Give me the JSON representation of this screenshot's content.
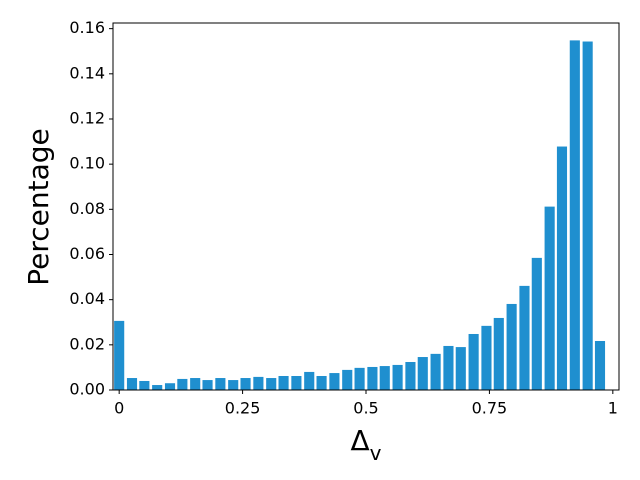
{
  "chart_data": {
    "type": "bar",
    "color": "#1f8fcf",
    "xlabel": {
      "base": "Δ",
      "sub": "v"
    },
    "ylabel": "Percentage",
    "x": [
      0,
      0.026,
      0.051,
      0.077,
      0.103,
      0.128,
      0.154,
      0.179,
      0.205,
      0.231,
      0.256,
      0.282,
      0.308,
      0.333,
      0.359,
      0.385,
      0.41,
      0.436,
      0.462,
      0.487,
      0.513,
      0.538,
      0.564,
      0.59,
      0.615,
      0.641,
      0.667,
      0.692,
      0.718,
      0.744,
      0.769,
      0.795,
      0.821,
      0.846,
      0.872,
      0.897,
      0.923,
      0.949,
      0.974
    ],
    "values": [
      0.0306,
      0.0053,
      0.004,
      0.0022,
      0.003,
      0.0049,
      0.0053,
      0.0044,
      0.0053,
      0.0044,
      0.0053,
      0.0058,
      0.0053,
      0.0062,
      0.0062,
      0.008,
      0.0062,
      0.0075,
      0.0089,
      0.0098,
      0.0102,
      0.0106,
      0.0111,
      0.0124,
      0.0146,
      0.016,
      0.0195,
      0.019,
      0.0248,
      0.0284,
      0.0319,
      0.0381,
      0.0461,
      0.0585,
      0.0812,
      0.1078,
      0.1548,
      0.1543,
      0.0217
    ],
    "xlim": [
      -0.0125,
      1.0125
    ],
    "xticks": [
      0,
      0.25,
      0.5,
      0.75,
      1
    ],
    "ylim": [
      0,
      0.1625
    ],
    "yticks": [
      {
        "value": 0,
        "label": "0.00"
      },
      {
        "value": 0.02,
        "label": "0.02"
      },
      {
        "value": 0.04,
        "label": "0.04"
      },
      {
        "value": 0.06,
        "label": "0.06"
      },
      {
        "value": 0.08,
        "label": "0.08"
      },
      {
        "value": 0.1,
        "label": "0.10"
      },
      {
        "value": 0.12,
        "label": "0.12"
      },
      {
        "value": 0.14,
        "label": "0.14"
      },
      {
        "value": 0.16,
        "label": "0.16"
      }
    ]
  }
}
